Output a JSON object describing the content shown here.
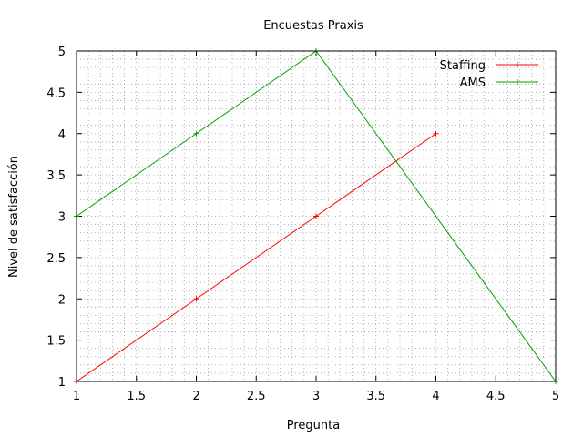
{
  "chart_data": {
    "type": "line",
    "title": "Encuestas Praxis",
    "xlabel": "Pregunta",
    "ylabel": "Nivel de satisfacción",
    "xlim": [
      1,
      5
    ],
    "ylim": [
      1,
      5
    ],
    "xticks": [
      "1",
      "1.5",
      "2",
      "2.5",
      "3",
      "3.5",
      "4",
      "4.5",
      "5"
    ],
    "yticks": [
      "1",
      "1.5",
      "2",
      "2.5",
      "3",
      "3.5",
      "4",
      "4.5",
      "5"
    ],
    "grid": true,
    "legend_position": "top-right",
    "series": [
      {
        "name": "Staffing",
        "color": "#ff0000",
        "marker": "plus",
        "points": [
          [
            1,
            1
          ],
          [
            2,
            2
          ],
          [
            3,
            3
          ],
          [
            4,
            4
          ]
        ]
      },
      {
        "name": "AMS",
        "color": "#00a000",
        "marker": "plus",
        "points": [
          [
            1,
            3
          ],
          [
            2,
            4
          ],
          [
            3,
            5
          ],
          [
            5,
            1
          ]
        ]
      }
    ]
  }
}
